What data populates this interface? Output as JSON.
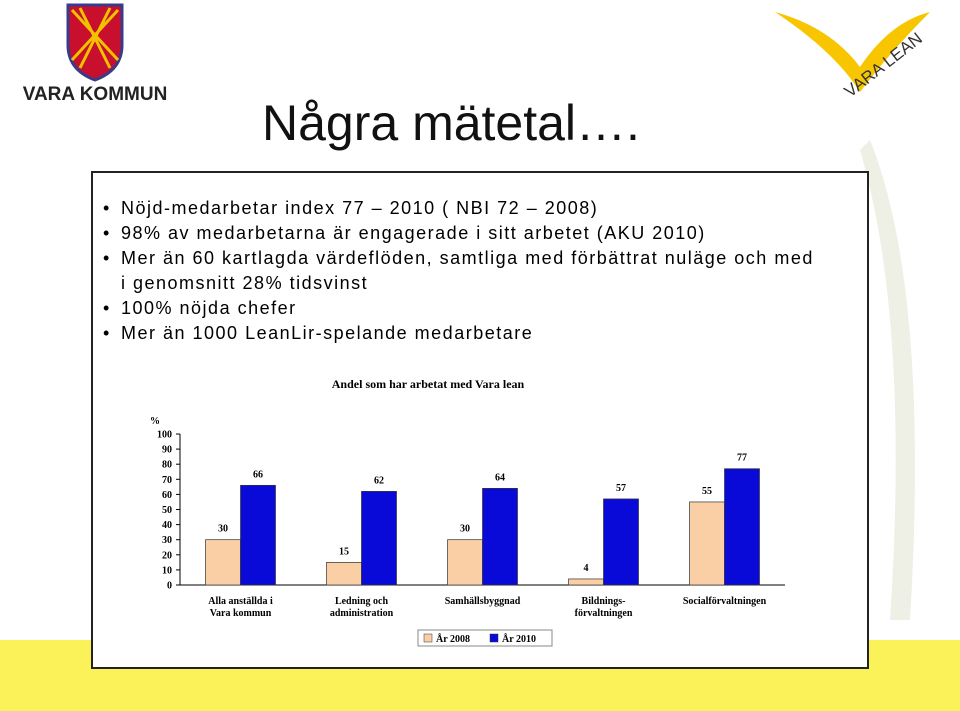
{
  "header": {
    "logo_left": "VARA KOMMUN",
    "logo_right": "VARA LEAN",
    "title": "Några mätetal…."
  },
  "bullets": [
    "Nöjd-medarbetar index 77 – 2010 ( NBI 72 – 2008)",
    "98% av medarbetarna är engagerade i sitt arbetet (AKU 2010)",
    "Mer än 60 kartlagda värdeflöden, samtliga med förbättrat nuläge och med i genomsnitt 28% tidsvinst",
    "100% nöjda chefer",
    "Mer än 1000 LeanLir-spelande medarbetare"
  ],
  "chart_data": {
    "type": "bar",
    "title": "Andel som har arbetat med Vara lean",
    "y_label": "%",
    "categories": [
      "Alla anställda i\nVara kommun",
      "Ledning och\nadministration",
      "Samhällsbyggnad",
      "Bildnings-\nförvaltningen",
      "Socialförvaltningen"
    ],
    "series": [
      {
        "name": "År 2008",
        "color": "#fbcfa6",
        "values": [
          30,
          15,
          30,
          4,
          55
        ]
      },
      {
        "name": "År 2010",
        "color": "#0a0ad8",
        "values": [
          66,
          62,
          64,
          57,
          77
        ]
      }
    ],
    "ylim": [
      0,
      100
    ],
    "yticks": [
      0,
      10,
      20,
      30,
      40,
      50,
      60,
      70,
      80,
      90,
      100
    ],
    "legend": "bottom"
  }
}
